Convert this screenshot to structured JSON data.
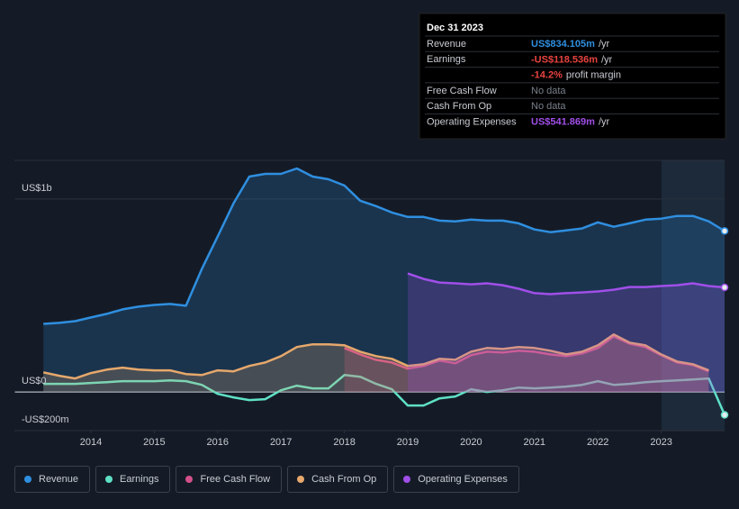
{
  "chart_data": {
    "type": "line",
    "x": [
      2013.25,
      2013.5,
      2013.75,
      2014,
      2014.25,
      2014.5,
      2014.75,
      2015,
      2015.25,
      2015.5,
      2015.75,
      2016,
      2016.25,
      2016.5,
      2016.75,
      2017,
      2017.25,
      2017.5,
      2017.75,
      2018,
      2018.25,
      2018.5,
      2018.75,
      2019,
      2019.25,
      2019.5,
      2019.75,
      2020,
      2020.25,
      2020.5,
      2020.75,
      2021,
      2021.25,
      2021.5,
      2021.75,
      2022,
      2022.25,
      2022.5,
      2022.75,
      2023,
      2023.25,
      2023.5,
      2023.75,
      2024
    ],
    "xlim": [
      2012.8,
      2024
    ],
    "xticks": [
      2014,
      2015,
      2016,
      2017,
      2018,
      2019,
      2020,
      2021,
      2022,
      2023
    ],
    "ylim": [
      -200,
      1200
    ],
    "yticks": [
      {
        "value": 1000,
        "label": "US$1b"
      },
      {
        "value": 0,
        "label": "US$0"
      },
      {
        "value": -200,
        "label": "-US$200m"
      }
    ],
    "series": [
      {
        "name": "Revenue",
        "color": "#2f8fe0",
        "fill": true,
        "values": [
          353,
          358,
          367,
          386,
          405,
          428,
          442,
          451,
          456,
          447,
          637,
          805,
          977,
          1116,
          1130,
          1130,
          1158,
          1116,
          1102,
          1070,
          991,
          963,
          930,
          907,
          907,
          888,
          884,
          893,
          888,
          888,
          874,
          842,
          828,
          837,
          847,
          879,
          856,
          874,
          893,
          898,
          912,
          912,
          884,
          834.105
        ]
      },
      {
        "name": "Earnings",
        "color": "#5fe0c6",
        "fill": false,
        "values": [
          42,
          42,
          42,
          47,
          51,
          56,
          56,
          56,
          60,
          56,
          37,
          -9,
          -28,
          -42,
          -37,
          9,
          33,
          19,
          19,
          88,
          79,
          42,
          14,
          -70,
          -70,
          -33,
          -23,
          14,
          0,
          9,
          23,
          19,
          23,
          28,
          37,
          56,
          37,
          42,
          51,
          56,
          60,
          65,
          70,
          -118.536
        ]
      },
      {
        "name": "Free Cash Flow",
        "color": "#d4508a",
        "fill": true,
        "values": [
          null,
          null,
          null,
          null,
          null,
          null,
          null,
          null,
          null,
          null,
          null,
          null,
          null,
          null,
          null,
          null,
          null,
          null,
          null,
          228,
          195,
          167,
          153,
          121,
          135,
          163,
          149,
          191,
          209,
          205,
          214,
          209,
          195,
          186,
          200,
          228,
          288,
          251,
          233,
          191,
          153,
          140,
          107,
          null
        ]
      },
      {
        "name": "Cash From Op",
        "color": "#e6a86c",
        "fill": true,
        "values": [
          102,
          84,
          70,
          98,
          116,
          126,
          116,
          112,
          112,
          93,
          88,
          112,
          107,
          135,
          153,
          186,
          233,
          247,
          247,
          242,
          209,
          186,
          172,
          135,
          144,
          172,
          167,
          209,
          228,
          223,
          233,
          228,
          214,
          195,
          209,
          242,
          298,
          256,
          242,
          195,
          158,
          144,
          112,
          null
        ]
      },
      {
        "name": "Operating Expenses",
        "color": "#a04fe8",
        "fill": true,
        "values": [
          null,
          null,
          null,
          null,
          null,
          null,
          null,
          null,
          null,
          null,
          null,
          null,
          null,
          null,
          null,
          null,
          null,
          null,
          null,
          null,
          null,
          null,
          null,
          614,
          586,
          567,
          563,
          558,
          563,
          553,
          535,
          512,
          507,
          512,
          516,
          521,
          530,
          544,
          544,
          549,
          553,
          563,
          549,
          541.869
        ]
      }
    ],
    "tooltip": {
      "title": "Dec 31 2023",
      "rows": [
        {
          "label": "Revenue",
          "value": "US$834.105m",
          "unit": "/yr",
          "color": "#2f8fe0"
        },
        {
          "label": "Earnings",
          "value": "-US$118.536m",
          "unit": "/yr",
          "color": "#e8433f"
        },
        {
          "value": "-14.2%",
          "unit": "profit margin",
          "color": "#e8433f"
        },
        {
          "label": "Free Cash Flow",
          "value": "No data",
          "color": "#7a808a"
        },
        {
          "label": "Cash From Op",
          "value": "No data",
          "color": "#7a808a"
        },
        {
          "label": "Operating Expenses",
          "value": "US$541.869m",
          "unit": "/yr",
          "color": "#a04fe8"
        }
      ]
    }
  }
}
